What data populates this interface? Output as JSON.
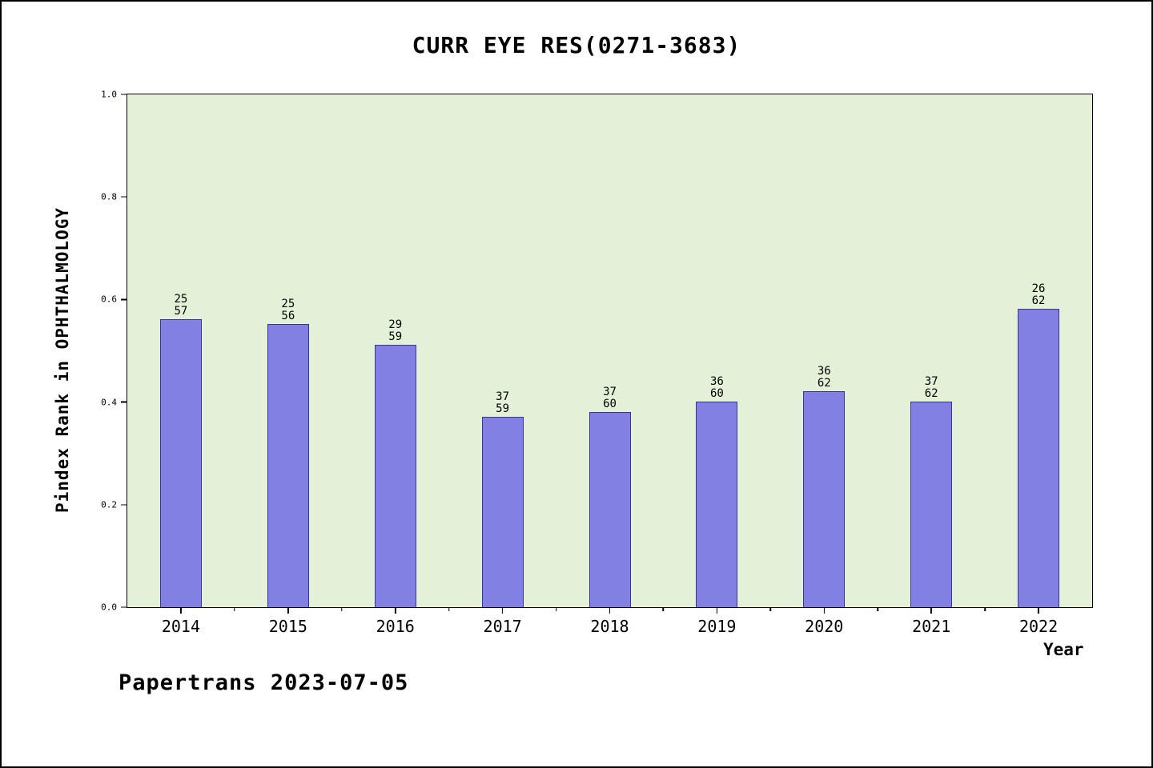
{
  "title": "CURR EYE RES(0271-3683)",
  "footer": "Papertrans 2023-07-05",
  "chart_data": {
    "type": "bar",
    "title": "CURR EYE RES(0271-3683)",
    "xlabel": "Year",
    "ylabel": "Pindex Rank in OPHTHALMOLOGY",
    "categories": [
      "2014",
      "2015",
      "2016",
      "2017",
      "2018",
      "2019",
      "2020",
      "2021",
      "2022"
    ],
    "values": [
      0.56,
      0.55,
      0.51,
      0.37,
      0.38,
      0.4,
      0.42,
      0.4,
      0.58
    ],
    "bar_labels": [
      [
        "25",
        "57"
      ],
      [
        "25",
        "56"
      ],
      [
        "29",
        "59"
      ],
      [
        "37",
        "59"
      ],
      [
        "37",
        "60"
      ],
      [
        "36",
        "60"
      ],
      [
        "36",
        "62"
      ],
      [
        "37",
        "62"
      ],
      [
        "26",
        "62"
      ]
    ],
    "ylim": [
      0.0,
      1.0
    ],
    "yticks": [
      "0.0",
      "0.2",
      "0.4",
      "0.6",
      "0.8",
      "1.0"
    ],
    "grid": "off",
    "legend": "none",
    "colors": {
      "bar_fill": "#8280e2",
      "bar_edge": "#34349a",
      "plot_bg": "#e4f0d8"
    }
  }
}
